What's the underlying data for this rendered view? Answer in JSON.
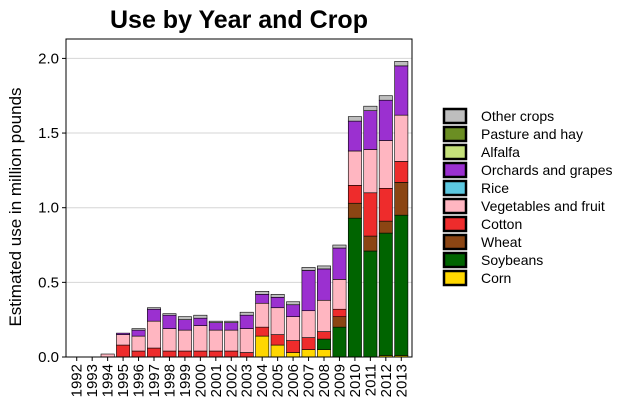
{
  "chart_data": {
    "type": "bar",
    "stacked": true,
    "title": "Use by Year and Crop",
    "xlabel": "",
    "ylabel": "Estimated use in million pounds",
    "ylim": [
      0,
      2.13
    ],
    "yticks": [
      "0.0",
      "0.5",
      "1.0",
      "1.5",
      "2.0"
    ],
    "grid": true,
    "legend_position": "right",
    "categories": [
      "1992",
      "1993",
      "1994",
      "1995",
      "1996",
      "1997",
      "1998",
      "1999",
      "2000",
      "2001",
      "2002",
      "2003",
      "2004",
      "2005",
      "2006",
      "2007",
      "2008",
      "2009",
      "2010",
      "2011",
      "2012",
      "2013"
    ],
    "series": [
      {
        "name": "Corn",
        "color": "#FFD700",
        "values": [
          0,
          0,
          0,
          0,
          0,
          0,
          0,
          0,
          0,
          0,
          0,
          0,
          0.14,
          0.08,
          0.03,
          0.05,
          0.05,
          0,
          0,
          0,
          0.01,
          0.01
        ]
      },
      {
        "name": "Soybeans",
        "color": "#006400",
        "values": [
          0,
          0,
          0,
          0,
          0,
          0,
          0,
          0,
          0,
          0,
          0,
          0,
          0,
          0,
          0,
          0,
          0.07,
          0.2,
          0.93,
          0.71,
          0.82,
          0.94
        ]
      },
      {
        "name": "Wheat",
        "color": "#8B4513",
        "values": [
          0,
          0,
          0,
          0,
          0,
          0,
          0,
          0,
          0,
          0,
          0,
          0,
          0,
          0,
          0,
          0,
          0,
          0.07,
          0.1,
          0.1,
          0.08,
          0.22
        ]
      },
      {
        "name": "Cotton",
        "color": "#EE2C2C",
        "values": [
          0,
          0,
          0,
          0.08,
          0.04,
          0.06,
          0.04,
          0.04,
          0.04,
          0.04,
          0.04,
          0.03,
          0.06,
          0.07,
          0.08,
          0.08,
          0.05,
          0.05,
          0.12,
          0.29,
          0.22,
          0.14
        ]
      },
      {
        "name": "Vegetables and fruit",
        "color": "#FFB6C1",
        "values": [
          0,
          0,
          0.02,
          0.07,
          0.1,
          0.18,
          0.15,
          0.14,
          0.17,
          0.14,
          0.14,
          0.16,
          0.16,
          0.18,
          0.16,
          0.18,
          0.21,
          0.2,
          0.23,
          0.29,
          0.32,
          0.31
        ]
      },
      {
        "name": "Rice",
        "color": "#5CC8E0",
        "values": [
          0,
          0,
          0,
          0,
          0,
          0,
          0,
          0,
          0,
          0,
          0,
          0,
          0,
          0,
          0,
          0,
          0,
          0,
          0,
          0,
          0,
          0
        ]
      },
      {
        "name": "Orchards and grapes",
        "color": "#9B30D0",
        "values": [
          0,
          0,
          0,
          0.01,
          0.04,
          0.08,
          0.09,
          0.07,
          0.05,
          0.05,
          0.05,
          0.09,
          0.06,
          0.07,
          0.08,
          0.27,
          0.21,
          0.21,
          0.2,
          0.26,
          0.27,
          0.33
        ]
      },
      {
        "name": "Alfalfa",
        "color": "#C5E17A",
        "values": [
          0,
          0,
          0,
          0,
          0,
          0,
          0,
          0,
          0,
          0,
          0,
          0,
          0,
          0,
          0,
          0,
          0,
          0,
          0,
          0,
          0,
          0
        ]
      },
      {
        "name": "Pasture and hay",
        "color": "#6B8E23",
        "values": [
          0,
          0,
          0,
          0,
          0,
          0,
          0,
          0,
          0,
          0,
          0,
          0,
          0,
          0,
          0,
          0,
          0,
          0,
          0,
          0,
          0,
          0
        ]
      },
      {
        "name": "Other crops",
        "color": "#BEBEBE",
        "values": [
          0,
          0,
          0,
          0,
          0.01,
          0.01,
          0.01,
          0.02,
          0.02,
          0.01,
          0.01,
          0.02,
          0.02,
          0.02,
          0.02,
          0.02,
          0.02,
          0.02,
          0.03,
          0.03,
          0.03,
          0.03
        ]
      }
    ],
    "legend": [
      "Other crops",
      "Pasture and hay",
      "Alfalfa",
      "Orchards and grapes",
      "Rice",
      "Vegetables and fruit",
      "Cotton",
      "Wheat",
      "Soybeans",
      "Corn"
    ]
  }
}
